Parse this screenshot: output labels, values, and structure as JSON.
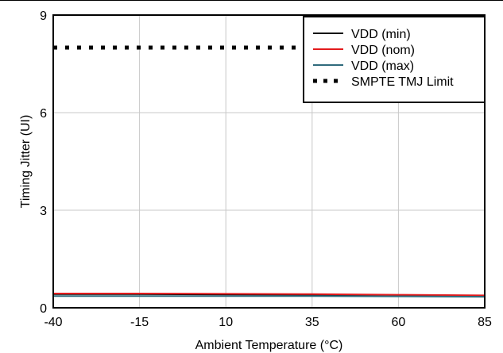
{
  "chart_data": {
    "type": "line",
    "title": "",
    "xlabel": "Ambient Temperature (°C)",
    "ylabel": "Timing Jitter (UI)",
    "xlim": [
      -40,
      85
    ],
    "ylim": [
      0,
      9
    ],
    "xticks": [
      -40,
      -15,
      10,
      35,
      60,
      85
    ],
    "yticks": [
      0,
      3,
      6,
      9
    ],
    "grid": true,
    "legend_position": "top-right",
    "x": [
      -40,
      -15,
      10,
      35,
      60,
      85
    ],
    "series": [
      {
        "name": "VDD (min)",
        "color": "#000000",
        "style": "solid",
        "values": [
          0.42,
          0.42,
          0.41,
          0.4,
          0.39,
          0.37
        ]
      },
      {
        "name": "VDD (nom)",
        "color": "#e31a1c",
        "style": "solid",
        "values": [
          0.44,
          0.44,
          0.43,
          0.42,
          0.4,
          0.38
        ]
      },
      {
        "name": "VDD (max)",
        "color": "#2f6b7c",
        "style": "solid",
        "values": [
          0.36,
          0.36,
          0.36,
          0.36,
          0.35,
          0.34
        ]
      },
      {
        "name": "SMPTE TMJ Limit",
        "color": "#000000",
        "style": "dotted",
        "values": [
          8,
          8,
          8,
          8,
          8,
          8
        ]
      }
    ]
  }
}
